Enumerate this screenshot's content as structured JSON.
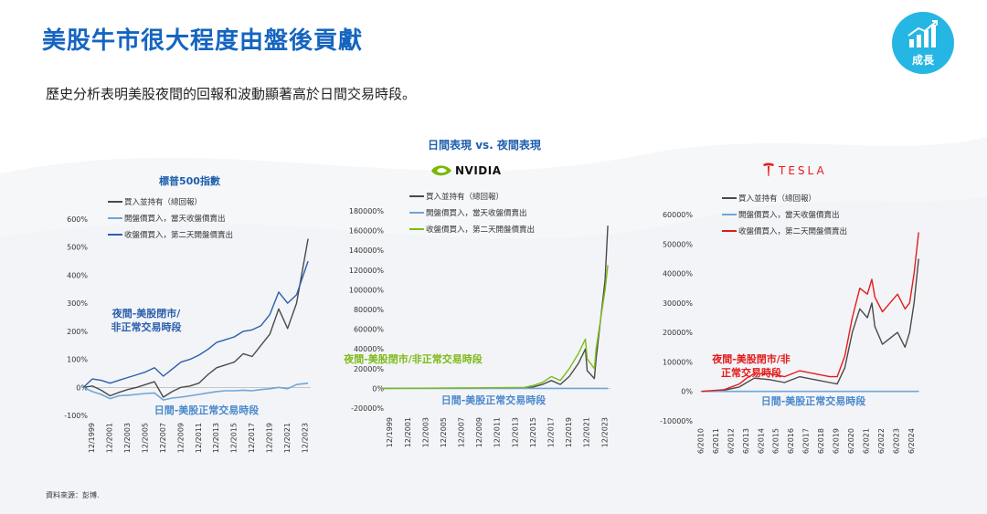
{
  "header": {
    "title": "美股牛市很大程度由盤後貢獻",
    "subtitle": "歷史分析表明美股夜間的回報和波動顯著高於日間交易時段。",
    "badge_label": "成長",
    "badge_icon": "growth-chart-icon"
  },
  "middle_title": "日間表現 vs. 夜間表現",
  "source": "資料來源：彭博.",
  "colors": {
    "title_blue": "#1565c0",
    "badge": "#26b6e4",
    "buy_hold": "#4a4a4a",
    "day": "#6ea6d8",
    "night_sp": "#2b5fad",
    "night_nvda": "#7cbb1a",
    "night_tsla": "#e31b1b"
  },
  "chart_data": [
    {
      "type": "line",
      "title": "標普500指數",
      "x": [
        "12/1999",
        "12/2001",
        "12/2003",
        "12/2005",
        "12/2007",
        "12/2009",
        "12/2011",
        "12/2013",
        "12/2015",
        "12/2017",
        "12/2019",
        "12/2021",
        "12/2023"
      ],
      "yticks": [
        "600%",
        "500%",
        "400%",
        "300%",
        "200%",
        "100%",
        "0%",
        "-100%"
      ],
      "ylim": [
        -100,
        600
      ],
      "legend": [
        "買入並持有（總回報）",
        "開盤價買入，當天收盤價賣出",
        "收盤價買入，第二天開盤價賣出"
      ],
      "annotations": {
        "night": "夜間-美股閉市/\n非正常交易時段",
        "day": "日間-美股正常交易時段"
      },
      "series": [
        {
          "name": "買入並持有（總回報）",
          "x": [
            1999,
            2000,
            2001,
            2002,
            2003,
            2004,
            2005,
            2006,
            2007,
            2008,
            2009,
            2010,
            2011,
            2012,
            2013,
            2014,
            2015,
            2016,
            2017,
            2018,
            2019,
            2020,
            2021,
            2022,
            2023,
            2024.3
          ],
          "values": [
            0,
            5,
            -10,
            -30,
            -18,
            -8,
            0,
            10,
            20,
            -35,
            -15,
            0,
            5,
            15,
            45,
            70,
            80,
            90,
            120,
            110,
            150,
            190,
            280,
            210,
            300,
            530
          ]
        },
        {
          "name": "開盤價買入，當天收盤價賣出",
          "x": [
            1999,
            2000,
            2001,
            2002,
            2003,
            2004,
            2005,
            2006,
            2007,
            2008,
            2009,
            2010,
            2011,
            2012,
            2013,
            2014,
            2015,
            2016,
            2017,
            2018,
            2019,
            2020,
            2021,
            2022,
            2023,
            2024.3
          ],
          "values": [
            0,
            -15,
            -25,
            -40,
            -30,
            -28,
            -25,
            -22,
            -20,
            -45,
            -38,
            -35,
            -30,
            -25,
            -20,
            -15,
            -12,
            -12,
            -10,
            -12,
            -8,
            -5,
            0,
            -5,
            10,
            15
          ]
        },
        {
          "name": "收盤價買入，第二天開盤價賣出",
          "x": [
            1999,
            2000,
            2001,
            2002,
            2003,
            2004,
            2005,
            2006,
            2007,
            2008,
            2009,
            2010,
            2011,
            2012,
            2013,
            2014,
            2015,
            2016,
            2017,
            2018,
            2019,
            2020,
            2021,
            2022,
            2023,
            2024.3
          ],
          "values": [
            0,
            30,
            25,
            15,
            25,
            35,
            45,
            55,
            70,
            40,
            65,
            90,
            100,
            115,
            135,
            160,
            170,
            180,
            200,
            205,
            220,
            260,
            340,
            300,
            330,
            450
          ]
        }
      ]
    },
    {
      "type": "line",
      "title": "NVIDIA",
      "x": [
        "12/1999",
        "12/2001",
        "12/2003",
        "12/2005",
        "12/2007",
        "12/2009",
        "12/2011",
        "12/2013",
        "12/2015",
        "12/2017",
        "12/2019",
        "12/2021",
        "12/2023"
      ],
      "yticks": [
        "180000%",
        "160000%",
        "140000%",
        "120000%",
        "100000%",
        "80000%",
        "60000%",
        "40000%",
        "20000%",
        "0%",
        "-20000%"
      ],
      "ylim": [
        -20000,
        180000
      ],
      "legend": [
        "買入並持有（總回報）",
        "開盤價買入，當天收盤價賣出",
        "收盤價買入，第二天開盤價賣出"
      ],
      "annotations": {
        "night": "夜間-美股閉市/非正常交易時段",
        "day": "日間-美股正常交易時段"
      },
      "series": [
        {
          "name": "買入並持有（總回報）",
          "x": [
            1999,
            2005,
            2010,
            2015,
            2016,
            2017,
            2018,
            2019,
            2020,
            2021,
            2021.8,
            2022,
            2022.8,
            2023,
            2023.5,
            2024,
            2024.3
          ],
          "values": [
            0,
            200,
            300,
            500,
            1500,
            4000,
            8000,
            4000,
            12000,
            25000,
            40000,
            18000,
            10000,
            30000,
            70000,
            110000,
            165000
          ]
        },
        {
          "name": "開盤價買入，當天收盤價賣出",
          "x": [
            1999,
            2024.3
          ],
          "values": [
            0,
            0
          ]
        },
        {
          "name": "收盤價買入，第二天開盤價賣出",
          "x": [
            1999,
            2005,
            2010,
            2015,
            2016,
            2017,
            2018,
            2019,
            2020,
            2021,
            2021.8,
            2022,
            2022.8,
            2023,
            2023.5,
            2024,
            2024.3
          ],
          "values": [
            0,
            300,
            600,
            1000,
            3000,
            6000,
            12000,
            8000,
            20000,
            35000,
            50000,
            30000,
            20000,
            40000,
            70000,
            100000,
            125000
          ]
        }
      ]
    },
    {
      "type": "line",
      "title": "TESLA",
      "x": [
        "6/2010",
        "6/2011",
        "6/2012",
        "6/2013",
        "6/2014",
        "6/2015",
        "6/2016",
        "6/2017",
        "6/2018",
        "6/2019",
        "6/2020",
        "6/2021",
        "6/2022",
        "6/2023",
        "6/2024"
      ],
      "yticks": [
        "60000%",
        "50000%",
        "40000%",
        "30000%",
        "20000%",
        "10000%",
        "0%",
        "-10000%"
      ],
      "ylim": [
        -10000,
        60000
      ],
      "legend": [
        "買入並持有（總回報）",
        "開盤價買入，當天收盤價賣出",
        "收盤價買入，第二天開盤價賣出"
      ],
      "annotations": {
        "night": "夜間-美股閉市/非\n正常交易時段",
        "day": "日間-美股正常交易時段"
      },
      "series": [
        {
          "name": "買入並持有（總回報）",
          "x": [
            2010.5,
            2012,
            2013,
            2013.5,
            2014,
            2015,
            2016,
            2017,
            2018,
            2019,
            2019.5,
            2020,
            2020.5,
            2021,
            2021.5,
            2021.8,
            2022,
            2022.5,
            2023,
            2023.5,
            2024,
            2024.3,
            2024.6,
            2024.9
          ],
          "values": [
            0,
            400,
            1500,
            3000,
            4500,
            4000,
            3000,
            5000,
            4000,
            3000,
            2500,
            8000,
            20000,
            28000,
            25000,
            30000,
            22000,
            16000,
            18000,
            20000,
            15000,
            20000,
            30000,
            45000
          ]
        },
        {
          "name": "開盤價買入，當天收盤價賣出",
          "x": [
            2010.5,
            2024.9
          ],
          "values": [
            0,
            0
          ]
        },
        {
          "name": "收盤價買入，第二天開盤價賣出",
          "x": [
            2010.5,
            2012,
            2013,
            2013.5,
            2014,
            2015,
            2016,
            2017,
            2018,
            2019,
            2019.5,
            2020,
            2020.5,
            2021,
            2021.5,
            2021.8,
            2022,
            2022.5,
            2023,
            2023.5,
            2024,
            2024.3,
            2024.6,
            2024.9
          ],
          "values": [
            0,
            600,
            2500,
            4500,
            6000,
            6000,
            5000,
            7000,
            6000,
            5000,
            5000,
            12000,
            25000,
            35000,
            33000,
            38000,
            32000,
            27000,
            30000,
            33000,
            28000,
            30000,
            40000,
            54000
          ]
        }
      ]
    }
  ]
}
